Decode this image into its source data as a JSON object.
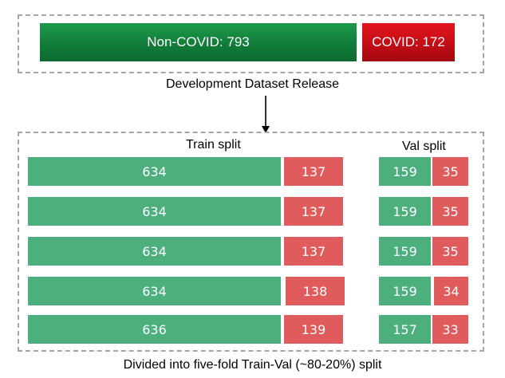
{
  "release": {
    "noncovid_label": "Non-COVID: 793",
    "covid_label": "COVID: 172",
    "caption": "Development Dataset Release"
  },
  "splits": {
    "train_title": "Train split",
    "val_title": "Val split",
    "folds": [
      {
        "train_noncovid": "634",
        "train_covid": "137",
        "val_noncovid": "159",
        "val_covid": "35"
      },
      {
        "train_noncovid": "634",
        "train_covid": "137",
        "val_noncovid": "159",
        "val_covid": "35"
      },
      {
        "train_noncovid": "634",
        "train_covid": "137",
        "val_noncovid": "159",
        "val_covid": "35"
      },
      {
        "train_noncovid": "634",
        "train_covid": "138",
        "val_noncovid": "159",
        "val_covid": "34"
      },
      {
        "train_noncovid": "636",
        "train_covid": "139",
        "val_noncovid": "157",
        "val_covid": "33"
      }
    ],
    "caption": "Divided into five-fold Train-Val (~80-20%) split"
  },
  "colors": {
    "noncovid": "#4caf7d",
    "covid": "#e05b5b",
    "release_noncovid": "#117c3a",
    "release_covid": "#c30d16"
  }
}
